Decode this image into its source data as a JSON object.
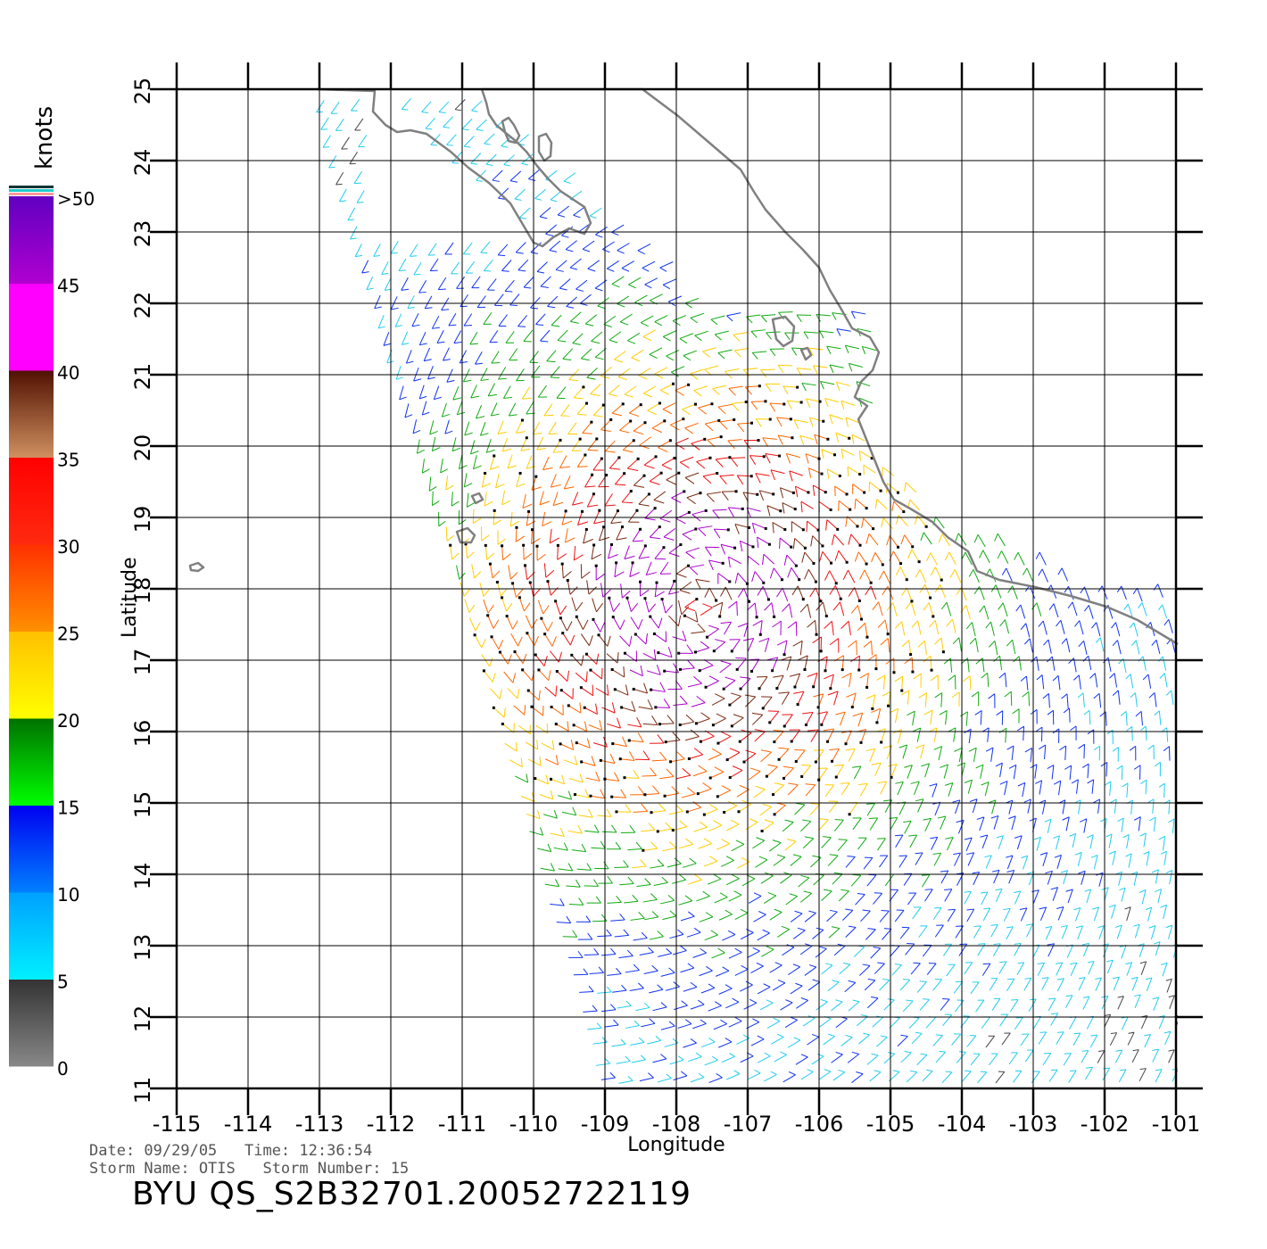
{
  "map": {
    "x_axis_title": "Longitude",
    "y_axis_title": "Latitude",
    "lon_range": [
      -115,
      -101
    ],
    "lat_range": [
      11,
      25
    ],
    "lon_ticks": [
      "-115",
      "-114",
      "-113",
      "-112",
      "-111",
      "-110",
      "-109",
      "-108",
      "-107",
      "-106",
      "-105",
      "-104",
      "-103",
      "-102",
      "-101"
    ],
    "lat_ticks": [
      "11",
      "12",
      "13",
      "14",
      "15",
      "16",
      "17",
      "18",
      "19",
      "20",
      "21",
      "22",
      "23",
      "24",
      "25"
    ],
    "grid": true,
    "coastline_color": "#808080"
  },
  "colorbar": {
    "unit": "knots",
    "labels": [
      "0",
      "5",
      "10",
      "15",
      "20",
      "25",
      "30",
      "35",
      "40",
      "45",
      ">50"
    ],
    "bands": [
      {
        "from": 0,
        "to": 5,
        "top": "#333333",
        "bottom": "#888888"
      },
      {
        "from": 5,
        "to": 10,
        "top": "#00a0ff",
        "bottom": "#00f0ff"
      },
      {
        "from": 10,
        "to": 15,
        "top": "#0000f0",
        "bottom": "#0080ff"
      },
      {
        "from": 15,
        "to": 20,
        "top": "#007000",
        "bottom": "#00ff00"
      },
      {
        "from": 20,
        "to": 25,
        "top": "#ffc000",
        "bottom": "#ffff00"
      },
      {
        "from": 25,
        "to": 30,
        "top": "#ff3000",
        "bottom": "#ff9000"
      },
      {
        "from": 30,
        "to": 35,
        "top": "#ff0000",
        "bottom": "#ff2a10"
      },
      {
        "from": 35,
        "to": 40,
        "top": "#501000",
        "bottom": "#d09060"
      },
      {
        "from": 40,
        "to": 45,
        "top": "#ff00ff",
        "bottom": "#ff00ff"
      },
      {
        "from": 45,
        "to": 50,
        "top": "#6000c0",
        "bottom": "#b000d0"
      }
    ],
    "extra_stripes": [
      "#ff9999",
      "#22cccc",
      "#003333"
    ]
  },
  "footer": {
    "line1": "Date: 09/29/05   Time: 12:36:54",
    "line2": "Storm Name: OTIS   Storm Number: 15",
    "title": "BYU QS_S2B32701.20052722119"
  },
  "wind_field": {
    "storm_center": {
      "lon": -107.7,
      "lat": 17.8
    },
    "max_speed_kt": 45,
    "swath_bounds": {
      "west_edge_north": -113,
      "west_edge_south": -109,
      "east_limit": -100.9
    }
  }
}
